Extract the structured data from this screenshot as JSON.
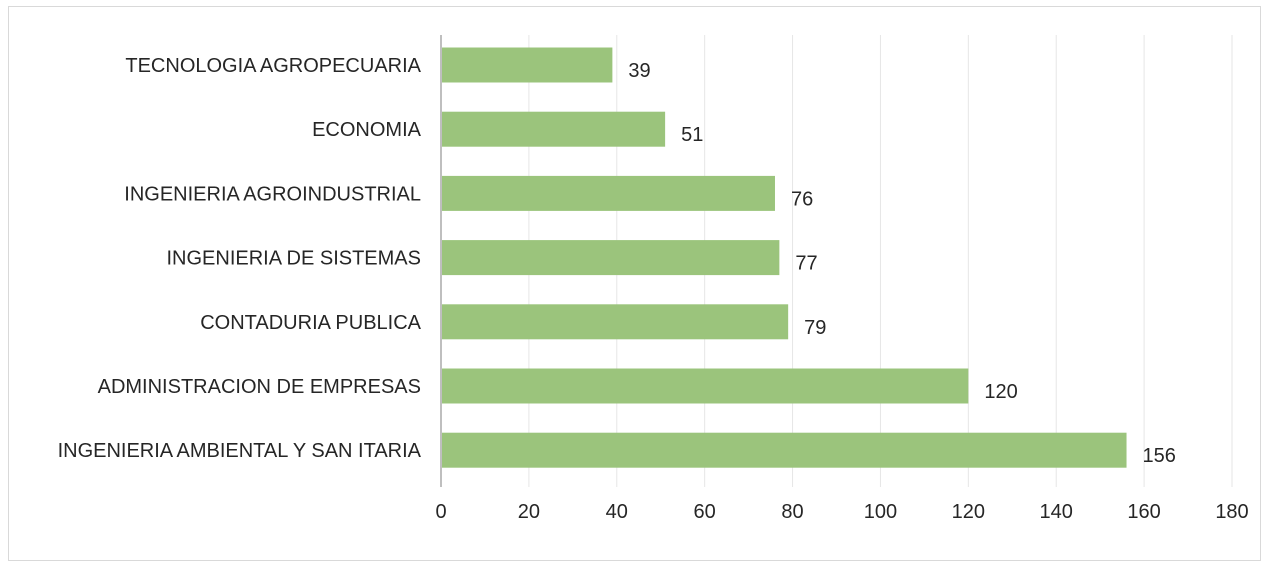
{
  "chart_data": {
    "type": "bar",
    "orientation": "horizontal",
    "categories": [
      "TECNOLOGIA AGROPECUARIA",
      "ECONOMIA",
      "INGENIERIA AGROINDUSTRIAL",
      "INGENIERIA DE SISTEMAS",
      "CONTADURIA PUBLICA",
      "ADMINISTRACION DE EMPRESAS",
      "INGENIERIA AMBIENTAL Y SAN ITARIA"
    ],
    "values": [
      39,
      51,
      76,
      77,
      79,
      120,
      156
    ],
    "xlim": [
      0,
      180
    ],
    "xticks": [
      0,
      20,
      40,
      60,
      80,
      100,
      120,
      140,
      160,
      180
    ],
    "grid": "vertical",
    "data_labels": true,
    "bar_color": "#9bc47c",
    "title": "",
    "xlabel": "",
    "ylabel": ""
  }
}
